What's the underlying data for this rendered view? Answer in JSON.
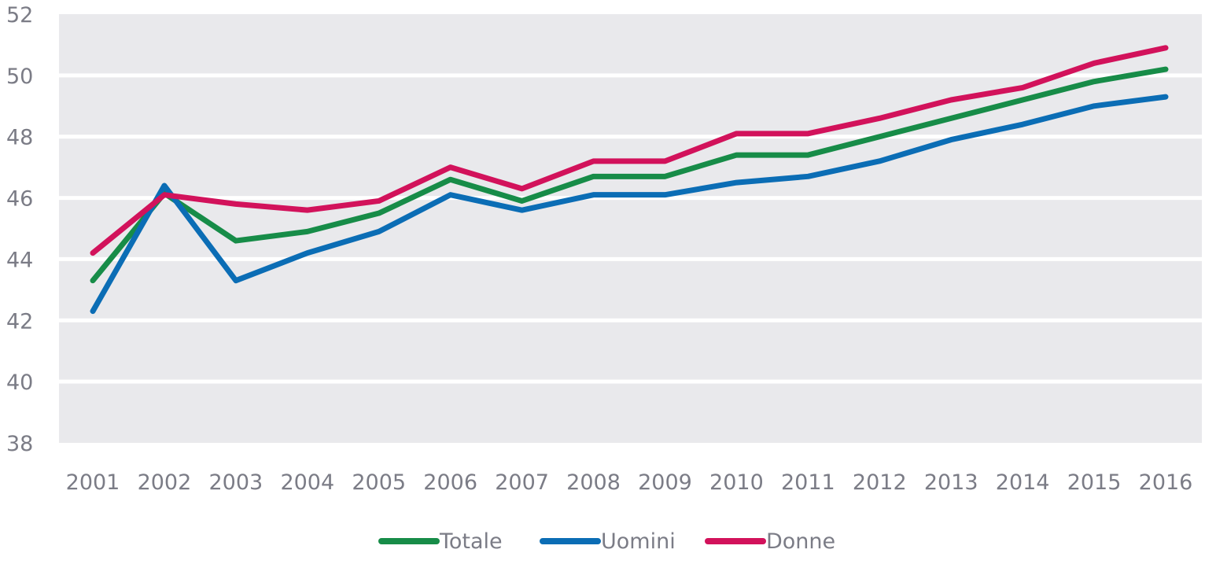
{
  "chart_data": {
    "type": "line",
    "title": "",
    "xlabel": "",
    "ylabel": "",
    "ylim": [
      38,
      52
    ],
    "yticks": [
      38,
      40,
      42,
      44,
      46,
      48,
      50,
      52
    ],
    "grid": true,
    "legend_position": "bottom",
    "background_color": "#e9e9ec",
    "categories": [
      "2001",
      "2002",
      "2003",
      "2004",
      "2005",
      "2006",
      "2007",
      "2008",
      "2009",
      "2010",
      "2011",
      "2012",
      "2013",
      "2014",
      "2015",
      "2016"
    ],
    "series": [
      {
        "name": "Totale",
        "color": "#178c48",
        "values": [
          43.3,
          46.15,
          44.6,
          44.9,
          45.5,
          46.6,
          45.9,
          46.7,
          46.7,
          47.4,
          47.4,
          48.0,
          48.6,
          49.2,
          49.8,
          50.2
        ]
      },
      {
        "name": "Uomini",
        "color": "#0b6db5",
        "values": [
          42.3,
          46.4,
          43.3,
          44.2,
          44.9,
          46.1,
          45.6,
          46.1,
          46.1,
          46.5,
          46.7,
          47.2,
          47.9,
          48.4,
          49.0,
          49.3
        ]
      },
      {
        "name": "Donne",
        "color": "#d2125b",
        "values": [
          44.2,
          46.1,
          45.8,
          45.6,
          45.9,
          47.0,
          46.3,
          47.2,
          47.2,
          48.1,
          48.1,
          48.6,
          49.2,
          49.6,
          50.4,
          50.9
        ]
      }
    ]
  }
}
